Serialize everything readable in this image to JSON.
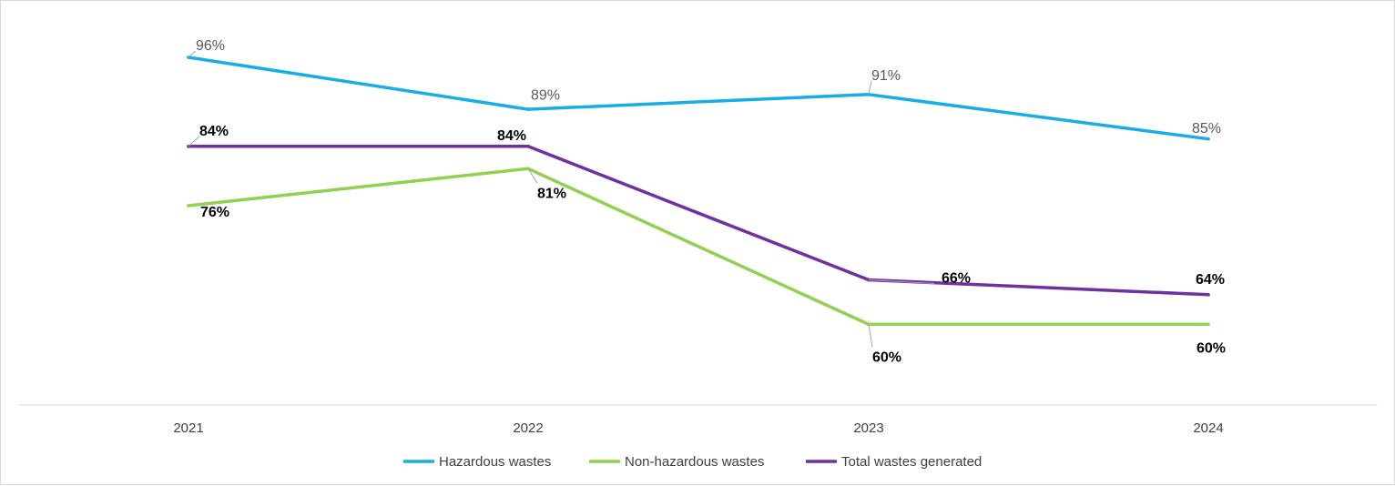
{
  "chart_data": {
    "type": "line",
    "title": "",
    "xlabel": "",
    "ylabel": "",
    "categories": [
      "2021",
      "2022",
      "2023",
      "2024"
    ],
    "ylim": [
      50,
      100
    ],
    "grid": false,
    "legend_position": "bottom",
    "series": [
      {
        "name": "Hazardous wastes",
        "color": "#17ade6",
        "values": [
          96,
          89,
          91,
          85
        ],
        "labels": [
          "96%",
          "89%",
          "91%",
          "85%"
        ]
      },
      {
        "name": "Non-hazardous wastes",
        "color": "#92d050",
        "values": [
          76,
          81,
          60,
          60
        ],
        "labels": [
          "76%",
          "81%",
          "60%",
          "60%"
        ]
      },
      {
        "name": "Total wastes generated",
        "color": "#7030a0",
        "values": [
          84,
          84,
          66,
          64
        ],
        "labels": [
          "84%",
          "84%",
          "66%",
          "64%"
        ]
      }
    ]
  }
}
